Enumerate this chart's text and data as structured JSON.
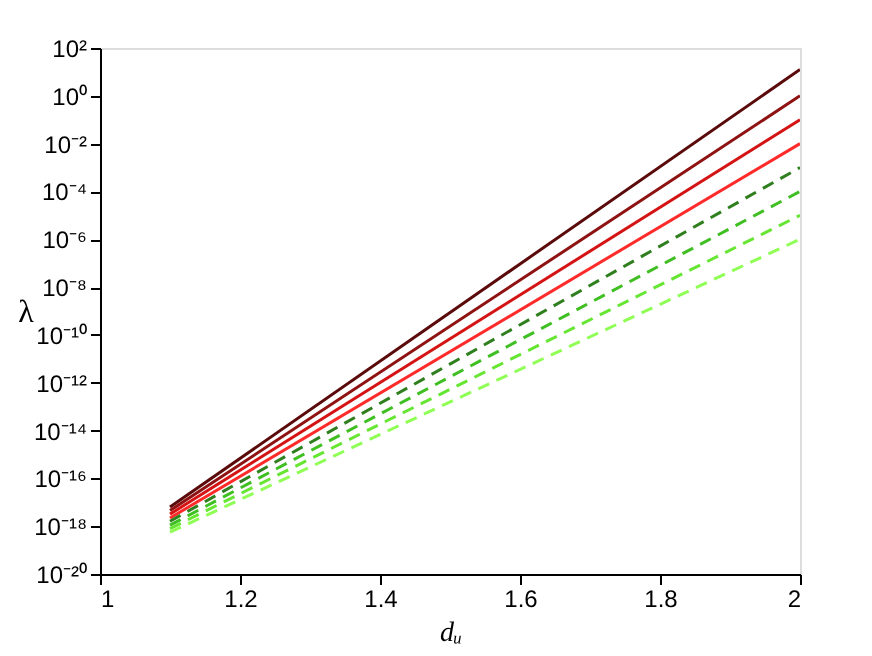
{
  "chart_data": {
    "type": "line",
    "xlabel": "dᵤ",
    "ylabel": "λ",
    "log": "y",
    "grid": false,
    "legend": false,
    "marker": "none",
    "x": [
      1.1,
      2
    ],
    "xlim": [
      1,
      2
    ],
    "xticks": [
      1,
      1.2,
      1.4,
      1.6,
      1.8,
      2
    ],
    "ylim": [
      1e-20,
      100
    ],
    "yticks": [
      {
        "value": 1e-20,
        "label": "10⁻²⁰"
      },
      {
        "value": 1e-18,
        "label": "10⁻¹⁸"
      },
      {
        "value": 1e-16,
        "label": "10⁻¹⁶"
      },
      {
        "value": 1e-14,
        "label": "10⁻¹⁴"
      },
      {
        "value": 1e-12,
        "label": "10⁻¹²"
      },
      {
        "value": 1e-10,
        "label": "10⁻¹⁰"
      },
      {
        "value": 1e-08,
        "label": "10⁻⁸"
      },
      {
        "value": 1e-06,
        "label": "10⁻⁶"
      },
      {
        "value": 0.0001,
        "label": "10⁻⁴"
      },
      {
        "value": 0.01,
        "label": "10⁻²"
      },
      {
        "value": 1,
        "label": "10⁰"
      },
      {
        "value": 100,
        "label": "10²"
      }
    ],
    "series": [
      {
        "color": "#5a0a0a",
        "line_style": "solid",
        "values": [
          6.3e-18,
          12.6
        ]
      },
      {
        "color": "#8e1212",
        "line_style": "solid",
        "values": [
          4.5e-18,
          1
        ]
      },
      {
        "color": "#d41414",
        "line_style": "solid",
        "values": [
          3.2e-18,
          0.1
        ]
      },
      {
        "color": "#ff2a2a",
        "line_style": "solid",
        "values": [
          2.2e-18,
          0.01
        ]
      },
      {
        "color": "#2f7f1f",
        "line_style": "dashed",
        "values": [
          1.6e-18,
          0.001
        ]
      },
      {
        "color": "#3fbf22",
        "line_style": "dashed",
        "values": [
          1.1e-18,
          0.0001
        ]
      },
      {
        "color": "#66e633",
        "line_style": "dashed",
        "values": [
          7.9e-19,
          1e-05
        ]
      },
      {
        "color": "#90ff55",
        "line_style": "dashed",
        "values": [
          5.6e-19,
          1e-06
        ]
      }
    ]
  }
}
